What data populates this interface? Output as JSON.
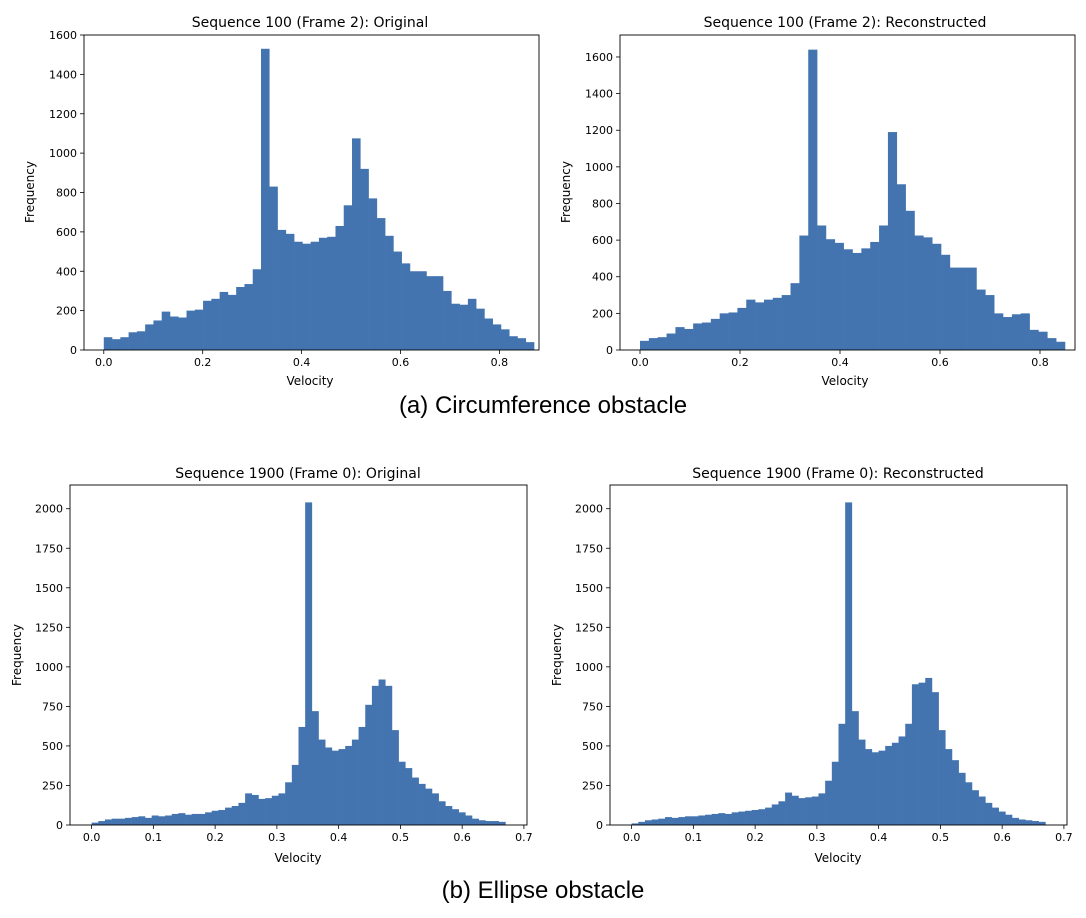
{
  "captions": {
    "a": "(a) Circumference obstacle",
    "b": "(b) Ellipse obstacle"
  },
  "colors": {
    "bar": "#4374b0"
  },
  "chart_data": [
    {
      "type": "bar",
      "title": "Sequence 100 (Frame 2): Original",
      "xlabel": "Velocity",
      "ylabel": "Frequency",
      "xlim": [
        -0.04,
        0.88
      ],
      "ylim": [
        0,
        1600
      ],
      "xticks": [
        0.0,
        0.2,
        0.4,
        0.6,
        0.8
      ],
      "xtick_labels": [
        "0.0",
        "0.2",
        "0.4",
        "0.6",
        "0.8"
      ],
      "yticks": [
        0,
        200,
        400,
        600,
        800,
        1000,
        1200,
        1400,
        1600
      ],
      "ytick_labels": [
        "0",
        "200",
        "400",
        "600",
        "800",
        "1000",
        "1200",
        "1400",
        "1600"
      ],
      "bin_start": 0.0,
      "bin_end": 0.87,
      "values": [
        65,
        55,
        65,
        90,
        95,
        130,
        150,
        195,
        170,
        165,
        200,
        205,
        250,
        260,
        295,
        280,
        320,
        335,
        410,
        1530,
        830,
        610,
        590,
        550,
        540,
        550,
        570,
        575,
        630,
        735,
        1075,
        920,
        770,
        670,
        580,
        500,
        440,
        400,
        400,
        375,
        375,
        300,
        235,
        230,
        260,
        210,
        160,
        130,
        105,
        70,
        60,
        40
      ]
    },
    {
      "type": "bar",
      "title": "Sequence 100 (Frame 2): Reconstructed",
      "xlabel": "Velocity",
      "ylabel": "Frequency",
      "xlim": [
        -0.04,
        0.87
      ],
      "ylim": [
        0,
        1720
      ],
      "xticks": [
        0.0,
        0.2,
        0.4,
        0.6,
        0.8
      ],
      "xtick_labels": [
        "0.0",
        "0.2",
        "0.4",
        "0.6",
        "0.8"
      ],
      "yticks": [
        0,
        200,
        400,
        600,
        800,
        1000,
        1200,
        1400,
        1600
      ],
      "ytick_labels": [
        "0",
        "200",
        "400",
        "600",
        "800",
        "1000",
        "1200",
        "1400",
        "1600"
      ],
      "bin_start": 0.0,
      "bin_end": 0.85,
      "values": [
        50,
        65,
        70,
        90,
        125,
        115,
        145,
        150,
        170,
        200,
        205,
        230,
        275,
        260,
        275,
        285,
        300,
        365,
        625,
        1640,
        680,
        605,
        585,
        550,
        530,
        555,
        590,
        680,
        1190,
        905,
        760,
        625,
        615,
        580,
        520,
        450,
        450,
        450,
        330,
        300,
        200,
        180,
        195,
        200,
        110,
        100,
        65,
        45
      ]
    },
    {
      "type": "bar",
      "title": "Sequence 1900 (Frame 0): Original",
      "xlabel": "Velocity",
      "ylabel": "Frequency",
      "xlim": [
        -0.035,
        0.705
      ],
      "ylim": [
        0,
        2150
      ],
      "xticks": [
        0.0,
        0.1,
        0.2,
        0.3,
        0.4,
        0.5,
        0.6,
        0.7
      ],
      "xtick_labels": [
        "0.0",
        "0.1",
        "0.2",
        "0.3",
        "0.4",
        "0.5",
        "0.6",
        "0.7"
      ],
      "yticks": [
        0,
        250,
        500,
        750,
        1000,
        1250,
        1500,
        1750,
        2000
      ],
      "ytick_labels": [
        "0",
        "250",
        "500",
        "750",
        "1000",
        "1250",
        "1500",
        "1750",
        "2000"
      ],
      "bin_start": 0.0,
      "bin_end": 0.67,
      "values": [
        15,
        25,
        35,
        40,
        40,
        45,
        50,
        55,
        45,
        60,
        55,
        60,
        70,
        75,
        65,
        70,
        70,
        80,
        90,
        95,
        110,
        120,
        140,
        200,
        190,
        165,
        170,
        185,
        200,
        270,
        380,
        620,
        2040,
        720,
        540,
        490,
        470,
        480,
        500,
        540,
        620,
        760,
        880,
        920,
        880,
        600,
        400,
        360,
        300,
        260,
        230,
        200,
        150,
        120,
        100,
        80,
        60,
        40,
        30,
        25,
        25,
        20
      ]
    },
    {
      "type": "bar",
      "title": "Sequence 1900 (Frame 0): Reconstructed",
      "xlabel": "Velocity",
      "ylabel": "Frequency",
      "xlim": [
        -0.035,
        0.705
      ],
      "ylim": [
        0,
        2150
      ],
      "xticks": [
        0.0,
        0.1,
        0.2,
        0.3,
        0.4,
        0.5,
        0.6,
        0.7
      ],
      "xtick_labels": [
        "0.0",
        "0.1",
        "0.2",
        "0.3",
        "0.4",
        "0.5",
        "0.6",
        "0.7"
      ],
      "yticks": [
        0,
        250,
        500,
        750,
        1000,
        1250,
        1500,
        1750,
        2000
      ],
      "ytick_labels": [
        "0",
        "250",
        "500",
        "750",
        "1000",
        "1250",
        "1500",
        "1750",
        "2000"
      ],
      "bin_start": 0.0,
      "bin_end": 0.67,
      "values": [
        10,
        20,
        30,
        35,
        40,
        50,
        45,
        50,
        55,
        55,
        60,
        65,
        70,
        75,
        70,
        80,
        85,
        90,
        95,
        100,
        110,
        130,
        150,
        205,
        185,
        170,
        175,
        180,
        200,
        280,
        400,
        640,
        2040,
        720,
        540,
        480,
        460,
        470,
        500,
        520,
        560,
        640,
        890,
        900,
        930,
        840,
        600,
        480,
        410,
        330,
        270,
        220,
        180,
        140,
        110,
        85,
        65,
        45,
        35,
        30,
        25,
        20
      ]
    }
  ]
}
